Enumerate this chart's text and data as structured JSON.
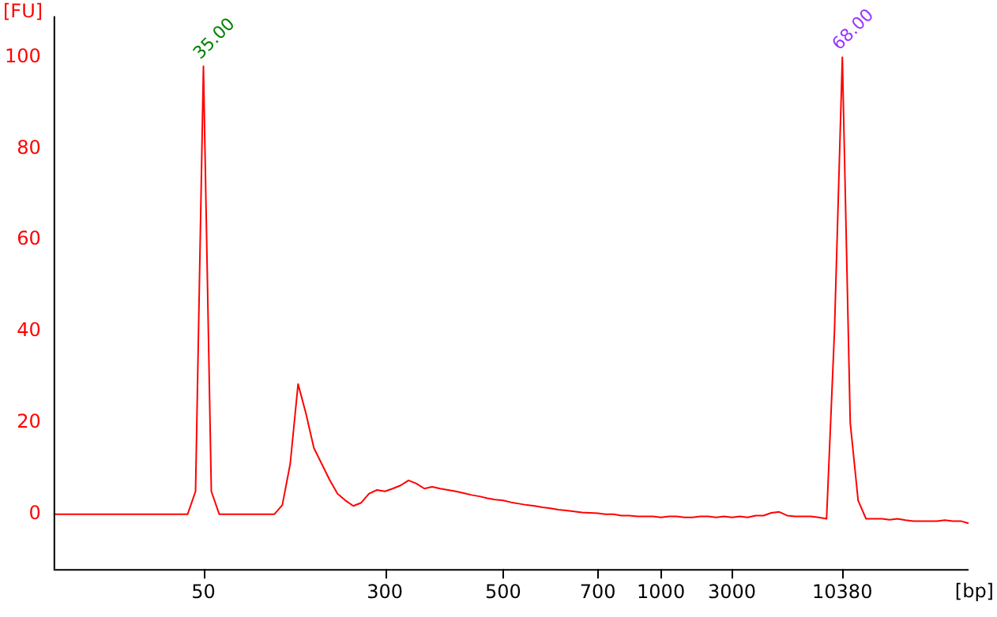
{
  "chart_data": {
    "type": "line",
    "xlabel": "[bp]",
    "ylabel": "[FU]",
    "categories": [
      null,
      null,
      null,
      null,
      null,
      null,
      null,
      null,
      null,
      null,
      null,
      null,
      null,
      null,
      null,
      null,
      null,
      null,
      null,
      "50",
      null,
      null,
      null,
      null,
      null,
      null,
      null,
      null,
      null,
      null,
      null,
      null,
      null,
      null,
      null,
      null,
      null,
      null,
      null,
      null,
      null,
      null,
      "300",
      null,
      null,
      null,
      null,
      null,
      null,
      null,
      null,
      null,
      null,
      null,
      null,
      null,
      null,
      "500",
      null,
      null,
      null,
      null,
      null,
      null,
      null,
      null,
      null,
      null,
      null,
      "700",
      null,
      null,
      null,
      null,
      null,
      null,
      null,
      "1000",
      null,
      null,
      null,
      null,
      null,
      null,
      null,
      null,
      "3000",
      null,
      null,
      null,
      null,
      null,
      null,
      null,
      null,
      null,
      null,
      null,
      null,
      null,
      "10380",
      null,
      null,
      null,
      null,
      null,
      null,
      null,
      null,
      null,
      null,
      null,
      null,
      null,
      null,
      null,
      null
    ],
    "series": [
      {
        "color": "#ff0000",
        "values": [
          0,
          0,
          0,
          0,
          0,
          0,
          0,
          0,
          0,
          0,
          0,
          0,
          0,
          0,
          0,
          0,
          0,
          0,
          5,
          98,
          5,
          0,
          0,
          0,
          0,
          0,
          0,
          0,
          0,
          2,
          11,
          28.5,
          22,
          14.5,
          11,
          7.5,
          4.5,
          3,
          1.8,
          2.5,
          4.5,
          5.3,
          5,
          5.6,
          6.3,
          7.4,
          6.7,
          5.6,
          6,
          5.6,
          5.3,
          5,
          4.6,
          4.2,
          3.9,
          3.5,
          3.2,
          3,
          2.6,
          2.3,
          2,
          1.8,
          1.5,
          1.3,
          1,
          0.8,
          0.6,
          0.4,
          0.3,
          0.2,
          0,
          0,
          -0.3,
          -0.3,
          -0.5,
          -0.5,
          -0.5,
          -0.7,
          -0.5,
          -0.5,
          -0.7,
          -0.7,
          -0.5,
          -0.5,
          -0.7,
          -0.5,
          -0.7,
          -0.5,
          -0.7,
          -0.3,
          -0.3,
          0.3,
          0.5,
          -0.3,
          -0.5,
          -0.5,
          -0.5,
          -0.7,
          -1,
          40,
          100,
          20,
          3,
          -1,
          -1,
          -1,
          -1.2,
          -1,
          -1.3,
          -1.5,
          -1.5,
          -1.5,
          -1.5,
          -1.3,
          -1.5,
          -1.5,
          -2
        ]
      }
    ],
    "ylim": [
      -12,
      109
    ],
    "yticks": [
      0,
      20,
      40,
      60,
      80,
      100
    ],
    "grid": false,
    "legend": false,
    "marker": "none",
    "line_style": "solid",
    "annotations": [
      {
        "text": "35.00",
        "x": "50",
        "y": 98
      },
      {
        "text": "68.00",
        "x": "10380",
        "y": 100
      }
    ]
  }
}
